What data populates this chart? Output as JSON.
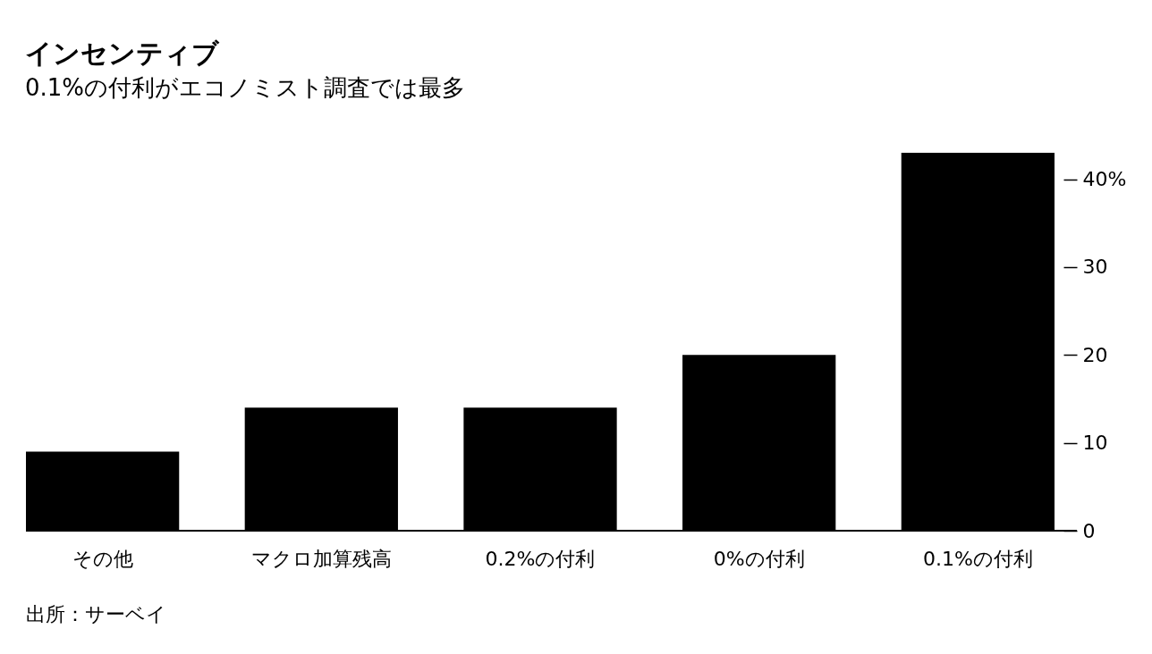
{
  "chart_data": {
    "type": "bar",
    "title": "インセンティブ",
    "subtitle": "0.1%の付利がエコノミスト調査では最多",
    "categories": [
      "その他",
      "マクロ加算残高",
      "0.2%の付利",
      "0%の付利",
      "0.1%の付利"
    ],
    "values": [
      9,
      14,
      14,
      20,
      43
    ],
    "color": "#000000",
    "ylim": [
      0,
      43
    ],
    "yticks": [
      0,
      10,
      20,
      30,
      {
        "value": 40,
        "label": "40%"
      }
    ],
    "annotations": [
      "出所：サーベイ"
    ]
  }
}
